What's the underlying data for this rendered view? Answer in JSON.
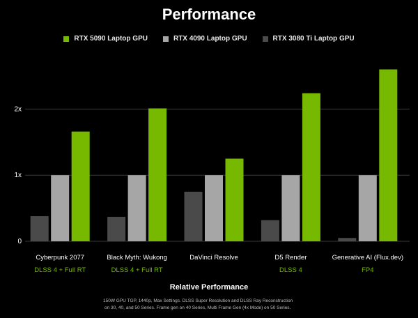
{
  "chart_data": {
    "type": "bar",
    "title": "Performance",
    "xlabel": "Relative Performance",
    "ylabel": "",
    "ylim": [
      0,
      2.5
    ],
    "yticks": [
      {
        "value": 0,
        "label": "0"
      },
      {
        "value": 1,
        "label": "1x"
      },
      {
        "value": 2,
        "label": "2x"
      }
    ],
    "grid": true,
    "legend_position": "top",
    "categories": [
      "Cyberpunk 2077",
      "Black Myth: Wukong",
      "DaVinci Resolve",
      "D5 Render",
      "Generative AI (Flux.dev)"
    ],
    "subcategories": [
      "DLSS 4 + Full RT",
      "DLSS 4 + Full RT",
      "",
      "DLSS 4",
      "FP4"
    ],
    "series": [
      {
        "name": "RTX 3080 Ti Laptop GPU",
        "color": "#4a4a4a",
        "values": [
          0.38,
          0.37,
          0.75,
          0.32,
          0.05
        ]
      },
      {
        "name": "RTX 4090 Laptop GPU",
        "color": "#a6a6a6",
        "values": [
          1.0,
          1.0,
          1.0,
          1.0,
          1.0
        ]
      },
      {
        "name": "RTX 5090 Laptop GPU",
        "color": "#76b900",
        "values": [
          1.66,
          2.01,
          1.25,
          2.24,
          2.6
        ]
      }
    ],
    "legend_order": [
      2,
      1,
      0
    ]
  },
  "notes": [
    "150W GPU TGP, 1440p, Max Settings. DLSS Super Resolution and DLSS Ray Reconstruction",
    "on 30, 40, and 50 Series. Frame gen on 40 Series, Multi Frame Gen (4x Mode) on 50 Series."
  ],
  "colors": {
    "background": "#000000",
    "accent_green": "#76b900",
    "subcategory_text": "#76b900",
    "grid": "#3a3a3a"
  }
}
